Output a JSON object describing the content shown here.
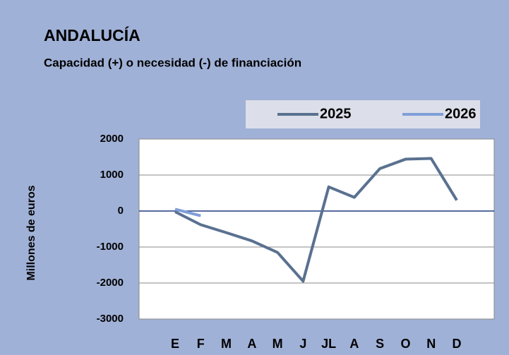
{
  "chart_data": {
    "type": "line",
    "title": "ANDALUCÍA",
    "subtitle": "Capacidad (+) o necesidad (-) de financiación",
    "y_label": "Millones de euros",
    "categories": [
      "E",
      "F",
      "M",
      "A",
      "M",
      "J",
      "JL",
      "A",
      "S",
      "O",
      "N",
      "D"
    ],
    "series": [
      {
        "name": "2025",
        "color": "#5a7190",
        "values": [
          -20,
          -380,
          -600,
          -830,
          -1150,
          -1950,
          670,
          380,
          1180,
          1440,
          1460,
          300
        ]
      },
      {
        "name": "2026",
        "color": "#7f9fd8",
        "values": [
          50,
          -130,
          null,
          null,
          null,
          null,
          null,
          null,
          null,
          null,
          null,
          null
        ]
      }
    ],
    "ylim": [
      -3000,
      2000
    ],
    "yticks": [
      -3000,
      -2000,
      -1000,
      0,
      1000,
      2000
    ],
    "grid": true
  }
}
